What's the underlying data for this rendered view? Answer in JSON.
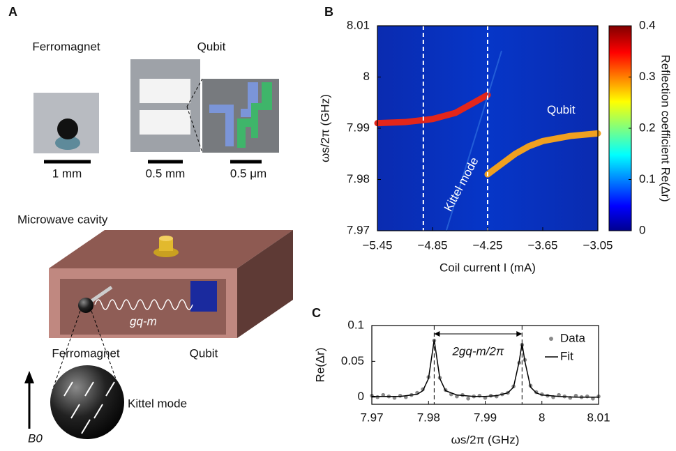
{
  "panel_a": {
    "label": "A",
    "ferromagnet_title": "Ferromagnet",
    "qubit_title": "Qubit",
    "scale_1": "1 mm",
    "scale_2": "0.5 mm",
    "scale_3": "0.5 μm",
    "cavity_title": "Microwave cavity",
    "coupling": "gq-m",
    "ferromagnet_label": "Ferromagnet",
    "qubit_label": "Qubit",
    "kittel_label": "Kittel mode",
    "field_label": "B0"
  },
  "chart_data": [
    {
      "type": "line",
      "label": "B",
      "xlabel": "Coil current I (mA)",
      "ylabel": "ωs/2π (GHz)",
      "xlim": [
        -5.45,
        -3.05
      ],
      "ylim": [
        7.97,
        8.01
      ],
      "xticks": [
        {
          "value": -5.45,
          "label": "−5.45"
        },
        {
          "value": -4.85,
          "label": "−4.85"
        },
        {
          "value": -4.25,
          "label": "−4.25"
        },
        {
          "value": -3.65,
          "label": "−3.65"
        },
        {
          "value": -3.05,
          "label": "−3.05"
        }
      ],
      "yticks": [
        7.97,
        7.98,
        7.99,
        8,
        8.01
      ],
      "vlines": [
        -4.95,
        -4.25
      ],
      "annotations": [
        "Qubit",
        "Kittel mode"
      ],
      "series": [
        {
          "color": "#e3261b",
          "x": [
            -5.45,
            -5.15,
            -4.85,
            -4.6,
            -4.45,
            -4.35,
            -4.25
          ],
          "values": [
            7.991,
            7.9912,
            7.9918,
            7.993,
            7.9945,
            7.9955,
            7.9965
          ]
        },
        {
          "color": "#f0a020",
          "x": [
            -4.25,
            -4.1,
            -3.95,
            -3.8,
            -3.65,
            -3.35,
            -3.05
          ],
          "values": [
            7.981,
            7.983,
            7.985,
            7.9865,
            7.9875,
            7.9885,
            7.989
          ]
        },
        {
          "color": "#2f6fe0",
          "x": [
            -4.7,
            -4.1
          ],
          "values": [
            7.97,
            8.005
          ]
        }
      ],
      "colorbar": {
        "label": "Reflection coefficient  Re(Δr)",
        "lim": [
          0,
          0.4
        ],
        "ticks": [
          0,
          0.1,
          0.2,
          0.3,
          0.4
        ]
      }
    },
    {
      "type": "line",
      "label": "C",
      "xlabel": "ωs/2π (GHz)",
      "ylabel": "Re(Δr)",
      "xlim": [
        7.97,
        8.01
      ],
      "ylim": [
        -0.01,
        0.1
      ],
      "xticks": [
        7.97,
        7.98,
        7.99,
        8,
        8.01
      ],
      "yticks": [
        0,
        0.05,
        0.1
      ],
      "vlines": [
        7.981,
        7.9965
      ],
      "annotations": [
        "2gq-m/2π"
      ],
      "legend": "upper right",
      "series": [
        {
          "name": "Data",
          "style": "markers",
          "color": "#8a8a8a",
          "x": [
            7.97,
            7.971,
            7.972,
            7.973,
            7.974,
            7.975,
            7.976,
            7.977,
            7.978,
            7.979,
            7.98,
            7.981,
            7.982,
            7.983,
            7.984,
            7.985,
            7.986,
            7.987,
            7.988,
            7.989,
            7.99,
            7.991,
            7.992,
            7.993,
            7.994,
            7.995,
            7.996,
            7.9965,
            7.997,
            7.998,
            7.999,
            8.0,
            8.001,
            8.002,
            8.003,
            8.004,
            8.005,
            8.006,
            8.007,
            8.008,
            8.009,
            8.01
          ],
          "values": [
            0.002,
            0.0,
            0.003,
            0.001,
            -0.001,
            0.002,
            0.0,
            0.003,
            0.006,
            0.011,
            0.028,
            0.079,
            0.027,
            0.01,
            0.004,
            0.001,
            0.003,
            -0.002,
            0.001,
            0.002,
            -0.001,
            0.002,
            0.001,
            0.004,
            0.006,
            0.015,
            0.048,
            0.073,
            0.052,
            0.016,
            0.007,
            0.004,
            0.002,
            0.0,
            0.003,
            0.001,
            -0.001,
            0.002,
            0.0,
            0.001,
            -0.002,
            0.001
          ]
        },
        {
          "name": "Fit",
          "style": "line",
          "color": "#000000",
          "x": [
            7.97,
            7.975,
            7.978,
            7.979,
            7.98,
            7.9805,
            7.981,
            7.9815,
            7.982,
            7.983,
            7.985,
            7.988,
            7.99,
            7.992,
            7.994,
            7.995,
            7.996,
            7.9965,
            7.997,
            7.998,
            7.999,
            8.0,
            8.003,
            8.006,
            8.01
          ],
          "values": [
            0.001,
            0.001,
            0.004,
            0.009,
            0.026,
            0.053,
            0.08,
            0.053,
            0.026,
            0.009,
            0.003,
            0.001,
            0.001,
            0.002,
            0.006,
            0.014,
            0.05,
            0.075,
            0.05,
            0.014,
            0.006,
            0.003,
            0.001,
            0,
            0
          ]
        }
      ]
    }
  ]
}
